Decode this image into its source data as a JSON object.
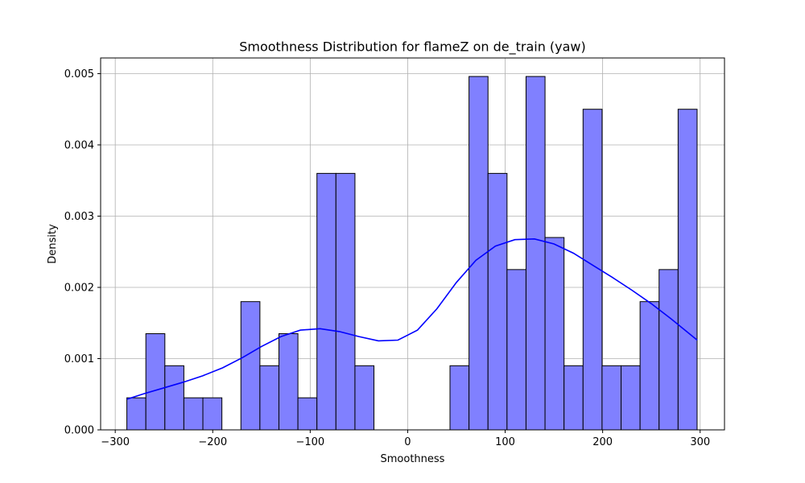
{
  "chart_data": {
    "type": "bar",
    "title": "Smoothness Distribution for flameZ on de_train (yaw)",
    "xlabel": "Smoothness",
    "ylabel": "Density",
    "xlim": [
      -315,
      325
    ],
    "ylim": [
      0,
      0.00522
    ],
    "xticks": [
      -300,
      -200,
      -100,
      0,
      100,
      200,
      300
    ],
    "xtick_labels": [
      "−300",
      "−200",
      "−100",
      "0",
      "100",
      "200",
      "300"
    ],
    "yticks": [
      0,
      0.001,
      0.002,
      0.003,
      0.004,
      0.005
    ],
    "ytick_labels": [
      "0.000",
      "0.001",
      "0.002",
      "0.003",
      "0.004",
      "0.005"
    ],
    "grid": true,
    "bar_color": "#8080ff",
    "bar_edge_color": "#000000",
    "kde_color": "#0000ff",
    "bin_start": -288.1,
    "bin_width": 19.5,
    "values": [
      0.00045,
      0.00135,
      0.0009,
      0.00045,
      0.00045,
      0,
      0.0018,
      0.0009,
      0.00135,
      0.00045,
      0.0036,
      0.0036,
      0.0009,
      0,
      0,
      0,
      0,
      0.0009,
      0.00496,
      0.0036,
      0.00225,
      0.00496,
      0.0027,
      0.0009,
      0.0045,
      0.0009,
      0.0009,
      0.0018,
      0.00225,
      0.0045
    ],
    "kde": {
      "x": [
        -288,
        -270,
        -250,
        -230,
        -210,
        -190,
        -170,
        -150,
        -130,
        -110,
        -90,
        -70,
        -50,
        -30,
        -10,
        10,
        30,
        50,
        70,
        90,
        110,
        130,
        150,
        170,
        190,
        210,
        230,
        250,
        270,
        297
      ],
      "y": [
        0.00043,
        0.00051,
        0.00059,
        0.00067,
        0.00076,
        0.00087,
        0.00101,
        0.00117,
        0.00131,
        0.0014,
        0.00142,
        0.00138,
        0.00131,
        0.00125,
        0.00126,
        0.0014,
        0.0017,
        0.00207,
        0.00238,
        0.00258,
        0.00267,
        0.00268,
        0.00261,
        0.00248,
        0.00231,
        0.00214,
        0.00196,
        0.00177,
        0.00156,
        0.00126
      ]
    }
  }
}
